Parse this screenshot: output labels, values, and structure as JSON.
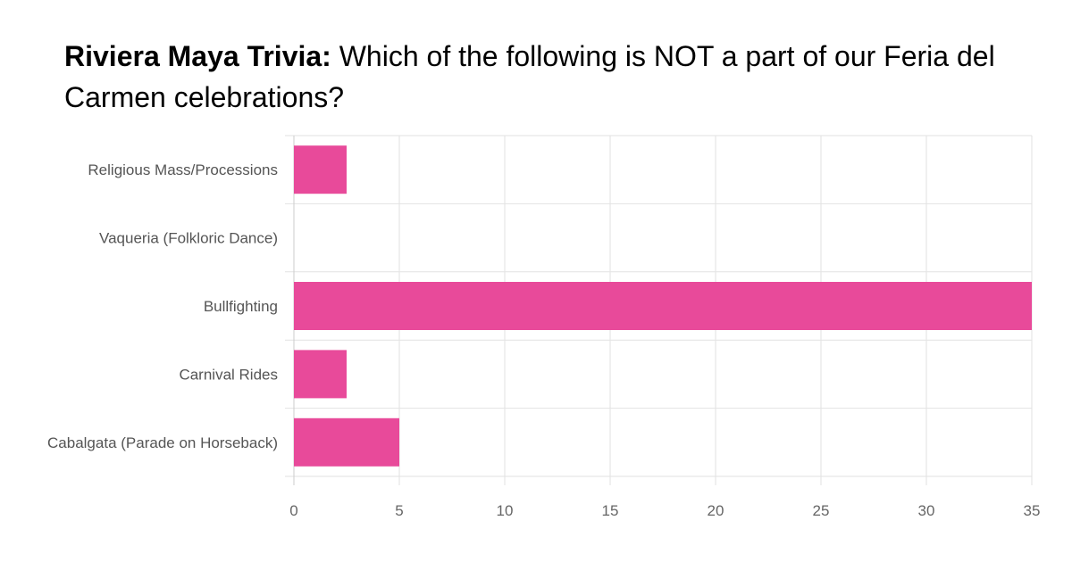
{
  "title": {
    "prefix": "Riviera Maya Trivia:",
    "question": " Which of the following is NOT a part of our Feria del Carmen celebrations?"
  },
  "colors": {
    "bar": "#e84a9a",
    "grid": "#e2e2e2",
    "axis": "#cccccc"
  },
  "chart_data": {
    "type": "bar",
    "orientation": "horizontal",
    "categories": [
      "Religious Mass/Processions",
      "Vaqueria (Folkloric Dance)",
      "Bullfighting",
      "Carnival Rides",
      "Cabalgata (Parade on Horseback)"
    ],
    "values": [
      2.5,
      0,
      35,
      2.5,
      5
    ],
    "xlim": [
      0,
      35
    ],
    "xticks": [
      0,
      5,
      10,
      15,
      20,
      25,
      30,
      35
    ],
    "grid": true,
    "legend": "none"
  }
}
